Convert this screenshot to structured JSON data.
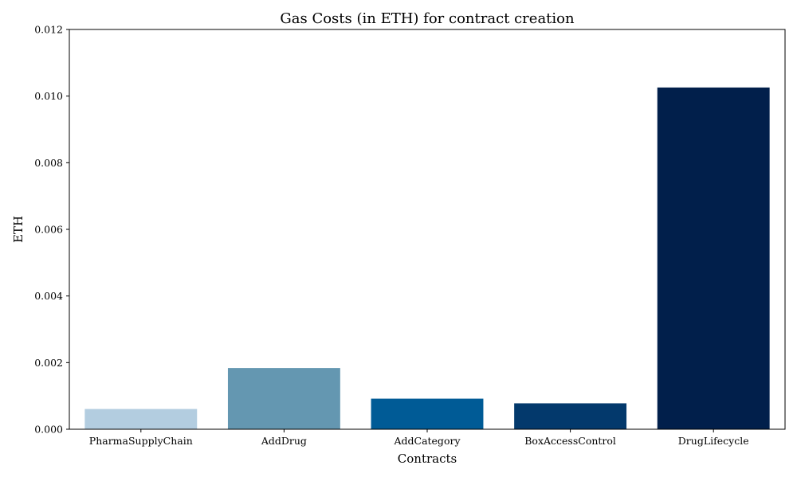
{
  "chart_data": {
    "type": "bar",
    "title": "Gas Costs (in ETH) for contract creation",
    "xlabel": "Contracts",
    "ylabel": "ETH",
    "categories": [
      "PharmaSupplyChain",
      "AddDrug",
      "AddCategory",
      "BoxAccessControl",
      "DrugLifecycle"
    ],
    "values": [
      0.00062,
      0.00185,
      0.00093,
      0.00079,
      0.01027
    ],
    "colors": [
      "#b3cde0",
      "#6497b1",
      "#005b96",
      "#03396c",
      "#011f4b"
    ],
    "ylim": [
      0,
      0.012
    ],
    "yticks": [
      "0.000",
      "0.002",
      "0.004",
      "0.006",
      "0.008",
      "0.010",
      "0.012"
    ],
    "grid": false,
    "legend": "none"
  }
}
